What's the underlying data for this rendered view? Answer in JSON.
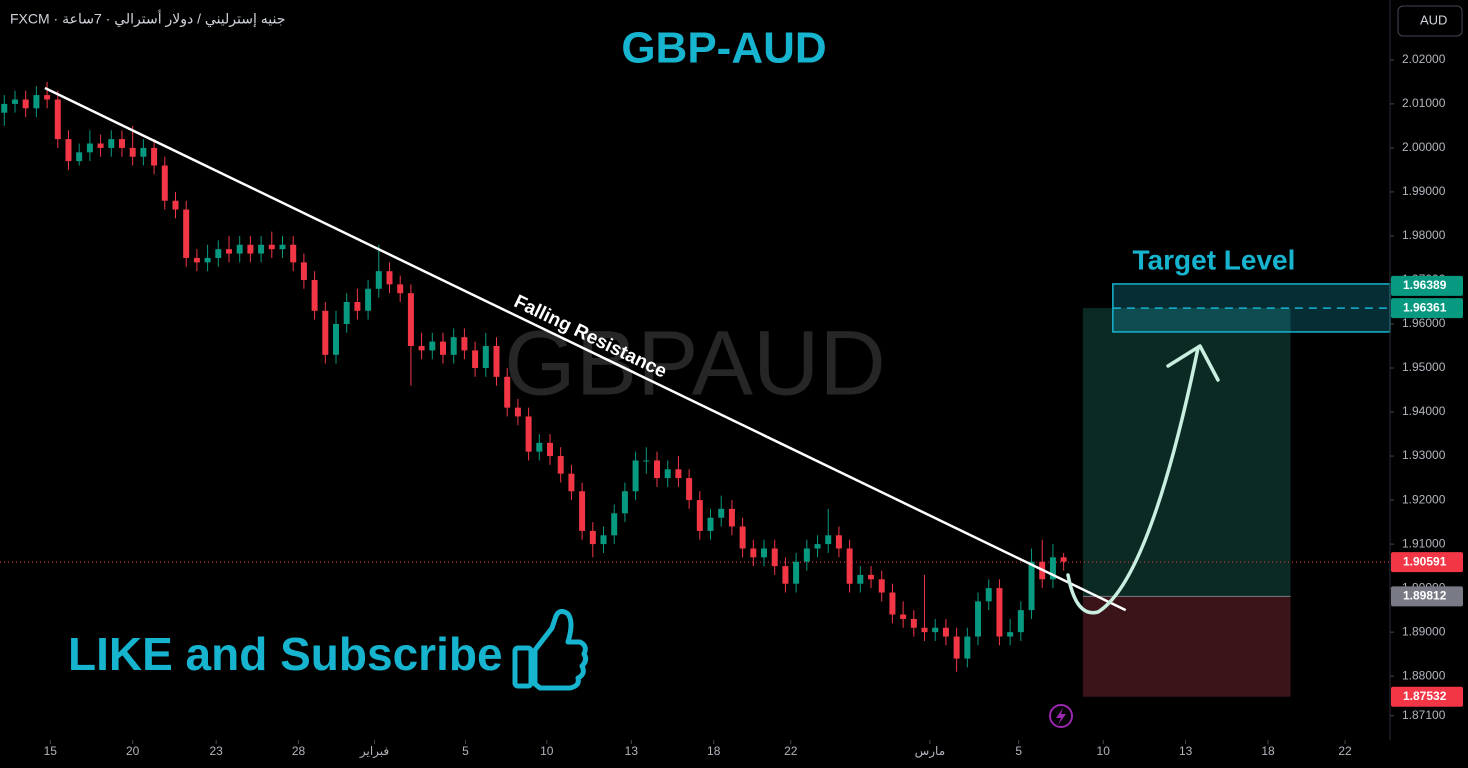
{
  "header": {
    "symbol": "FXCM · جنيه إسترليني / دولار أسترالي · 7ساعة",
    "currency": "AUD"
  },
  "chart_data": {
    "type": "candlestick",
    "title": "GBP-AUD",
    "watermark": "GBPAUD",
    "up_color": "#089981",
    "down_color": "#f23645",
    "open": [
      2.008,
      2.01,
      2.011,
      2.009,
      2.012,
      2.011,
      2.002,
      1.997,
      1.999,
      2.001,
      2.0,
      2.002,
      2.0,
      1.998,
      2.0,
      1.996,
      1.988,
      1.986,
      1.975,
      1.974,
      1.975,
      1.977,
      1.976,
      1.978,
      1.976,
      1.978,
      1.977,
      1.978,
      1.974,
      1.97,
      1.963,
      1.953,
      1.96,
      1.965,
      1.963,
      1.968,
      1.972,
      1.969,
      1.967,
      1.955,
      1.954,
      1.956,
      1.953,
      1.957,
      1.954,
      1.95,
      1.955,
      1.948,
      1.941,
      1.939,
      1.931,
      1.933,
      1.93,
      1.926,
      1.922,
      1.913,
      1.91,
      1.912,
      1.917,
      1.922,
      1.929,
      1.929,
      1.925,
      1.927,
      1.925,
      1.92,
      1.913,
      1.916,
      1.918,
      1.914,
      1.909,
      1.907,
      1.909,
      1.905,
      1.901,
      1.906,
      1.909,
      1.91,
      1.912,
      1.909,
      1.901,
      1.903,
      1.902,
      1.899,
      1.894,
      1.893,
      1.891,
      1.89,
      1.891,
      1.889,
      1.884,
      1.889,
      1.897,
      1.9,
      1.889,
      1.89,
      1.895,
      1.906,
      1.902,
      1.907
    ],
    "high": [
      2.012,
      2.013,
      2.013,
      2.014,
      2.015,
      2.013,
      2.004,
      2.001,
      2.004,
      2.003,
      2.004,
      2.004,
      2.005,
      2.002,
      2.002,
      1.998,
      1.99,
      1.988,
      1.977,
      1.978,
      1.979,
      1.98,
      1.98,
      1.98,
      1.98,
      1.981,
      1.98,
      1.98,
      1.976,
      1.972,
      1.965,
      1.963,
      1.967,
      1.968,
      1.97,
      1.978,
      1.974,
      1.971,
      1.969,
      1.958,
      1.958,
      1.958,
      1.959,
      1.959,
      1.956,
      1.958,
      1.957,
      1.95,
      1.943,
      1.941,
      1.935,
      1.935,
      1.932,
      1.928,
      1.924,
      1.915,
      1.914,
      1.919,
      1.924,
      1.931,
      1.932,
      1.931,
      1.929,
      1.93,
      1.927,
      1.922,
      1.918,
      1.921,
      1.92,
      1.916,
      1.911,
      1.911,
      1.911,
      1.907,
      1.908,
      1.911,
      1.912,
      1.918,
      1.914,
      1.911,
      1.905,
      1.905,
      1.904,
      1.901,
      1.897,
      1.895,
      1.903,
      1.893,
      1.893,
      1.891,
      1.891,
      1.899,
      1.902,
      1.902,
      1.893,
      1.897,
      1.909,
      1.911,
      1.91,
      1.908
    ],
    "low": [
      2.005,
      2.008,
      2.007,
      2.007,
      2.009,
      2.0,
      1.995,
      1.996,
      1.997,
      1.998,
      1.998,
      1.998,
      1.996,
      1.996,
      1.994,
      1.986,
      1.984,
      1.973,
      1.972,
      1.972,
      1.973,
      1.974,
      1.974,
      1.974,
      1.974,
      1.975,
      1.975,
      1.972,
      1.968,
      1.961,
      1.951,
      1.951,
      1.958,
      1.961,
      1.961,
      1.966,
      1.967,
      1.965,
      1.946,
      1.952,
      1.952,
      1.951,
      1.951,
      1.952,
      1.948,
      1.948,
      1.946,
      1.939,
      1.937,
      1.929,
      1.929,
      1.928,
      1.924,
      1.92,
      1.911,
      1.907,
      1.908,
      1.91,
      1.915,
      1.92,
      1.926,
      1.923,
      1.923,
      1.923,
      1.918,
      1.911,
      1.911,
      1.914,
      1.912,
      1.907,
      1.905,
      1.905,
      1.903,
      1.899,
      1.899,
      1.904,
      1.907,
      1.908,
      1.907,
      1.899,
      1.899,
      1.9,
      1.897,
      1.892,
      1.891,
      1.889,
      1.888,
      1.888,
      1.887,
      1.881,
      1.882,
      1.887,
      1.895,
      1.887,
      1.887,
      1.888,
      1.893,
      1.9,
      1.9,
      1.904
    ],
    "close": [
      2.01,
      2.011,
      2.009,
      2.012,
      2.011,
      2.002,
      1.997,
      1.999,
      2.001,
      2.0,
      2.002,
      2.0,
      1.998,
      2.0,
      1.996,
      1.988,
      1.986,
      1.975,
      1.974,
      1.975,
      1.977,
      1.976,
      1.978,
      1.976,
      1.978,
      1.977,
      1.978,
      1.974,
      1.97,
      1.963,
      1.953,
      1.96,
      1.965,
      1.963,
      1.968,
      1.972,
      1.969,
      1.967,
      1.955,
      1.954,
      1.956,
      1.953,
      1.957,
      1.954,
      1.95,
      1.955,
      1.948,
      1.941,
      1.939,
      1.931,
      1.933,
      1.93,
      1.926,
      1.922,
      1.913,
      1.91,
      1.912,
      1.917,
      1.922,
      1.929,
      1.929,
      1.925,
      1.927,
      1.925,
      1.92,
      1.913,
      1.916,
      1.918,
      1.914,
      1.909,
      1.907,
      1.909,
      1.905,
      1.901,
      1.906,
      1.909,
      1.91,
      1.912,
      1.909,
      1.901,
      1.903,
      1.902,
      1.899,
      1.894,
      1.893,
      1.891,
      1.89,
      1.891,
      1.889,
      1.884,
      1.889,
      1.897,
      1.9,
      1.889,
      1.89,
      1.895,
      1.906,
      1.902,
      1.907,
      1.906
    ],
    "xlim": [
      -0.4,
      129.5
    ],
    "ylim": [
      1.8655,
      2.0336
    ],
    "xticks": [
      {
        "value": 4.3,
        "label": "15"
      },
      {
        "value": 12.0,
        "label": "20"
      },
      {
        "value": 19.8,
        "label": "23"
      },
      {
        "value": 27.5,
        "label": "28"
      },
      {
        "value": 34.6,
        "label": "فبراير"
      },
      {
        "value": 43.1,
        "label": "5"
      },
      {
        "value": 50.7,
        "label": "10"
      },
      {
        "value": 58.6,
        "label": "13"
      },
      {
        "value": 66.3,
        "label": "18"
      },
      {
        "value": 73.5,
        "label": "22"
      },
      {
        "value": 86.5,
        "label": "مارس"
      },
      {
        "value": 94.8,
        "label": "5"
      },
      {
        "value": 102.7,
        "label": "10"
      },
      {
        "value": 110.4,
        "label": "13"
      },
      {
        "value": 118.1,
        "label": "18"
      },
      {
        "value": 125.3,
        "label": "22"
      }
    ],
    "yticks": [
      {
        "value": 1.871,
        "label": "1.87100"
      },
      {
        "value": 1.88,
        "label": "1.88000"
      },
      {
        "value": 1.89,
        "label": "1.89000"
      },
      {
        "value": 1.9,
        "label": "1.90000"
      },
      {
        "value": 1.91,
        "label": "1.91000"
      },
      {
        "value": 1.92,
        "label": "1.92000"
      },
      {
        "value": 1.93,
        "label": "1.93000"
      },
      {
        "value": 1.94,
        "label": "1.94000"
      },
      {
        "value": 1.95,
        "label": "1.95000"
      },
      {
        "value": 1.96,
        "label": "1.96000"
      },
      {
        "value": 1.97,
        "label": "1.97000"
      },
      {
        "value": 1.98,
        "label": "1.98000"
      },
      {
        "value": 1.99,
        "label": "1.99000"
      },
      {
        "value": 2.0,
        "label": "2.00000"
      },
      {
        "value": 2.01,
        "label": "2.01000"
      },
      {
        "value": 2.02,
        "label": "2.02000"
      }
    ],
    "trendline": {
      "label": "Falling Resistance",
      "x": [
        3.8,
        104.8
      ],
      "y": [
        2.0136,
        1.895
      ]
    },
    "position": {
      "x": [
        100.8,
        120.2
      ],
      "entry": 1.89812,
      "target": 1.96361,
      "stop": 1.87532
    },
    "target_zone": {
      "label": "Target Level",
      "x": [
        103.6,
        129.5
      ],
      "y": [
        1.9582,
        1.9691
      ]
    },
    "current_price": 1.90591,
    "price_labels": [
      {
        "value": 1.96389,
        "color": "#089981"
      },
      {
        "value": 1.96361,
        "color": "#089981"
      },
      {
        "value": 1.90591,
        "color": "#f23645"
      },
      {
        "value": 1.89812,
        "color": "#787b86"
      },
      {
        "value": 1.87532,
        "color": "#f23645"
      }
    ]
  },
  "promo": "LIKE and Subscribe"
}
